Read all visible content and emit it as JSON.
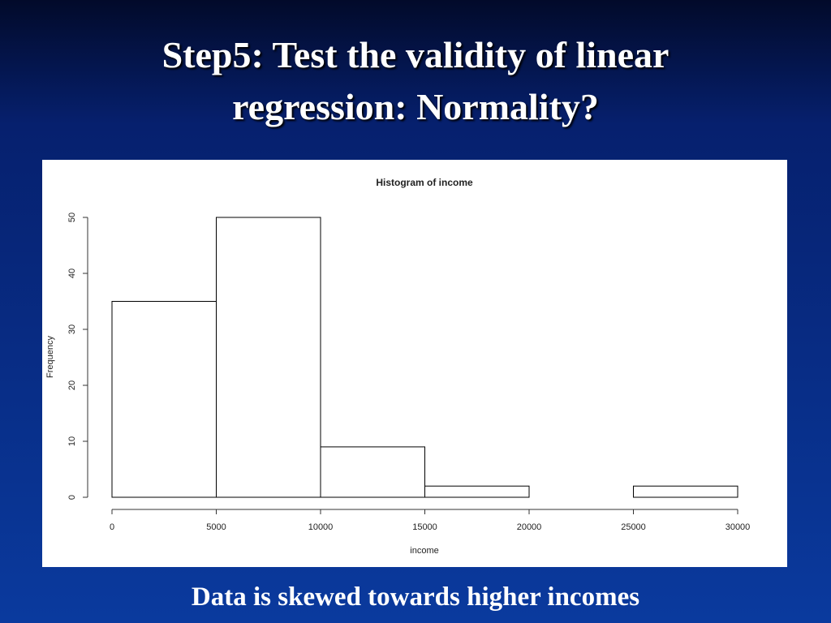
{
  "slide": {
    "title": "Step5: Test the validity of linear regression: Normality?",
    "caption": "Data is skewed towards higher incomes"
  },
  "chart_data": {
    "type": "histogram",
    "title": "Histogram of income",
    "xlabel": "income",
    "ylabel": "Frequency",
    "bins": [
      0,
      5000,
      10000,
      15000,
      20000,
      25000,
      30000
    ],
    "values": [
      35,
      50,
      9,
      2,
      0,
      2
    ],
    "color": "#ffffff",
    "edgecolor": "#000000",
    "xlim": [
      0,
      30000
    ],
    "ylim": [
      0,
      50
    ],
    "xticks": [
      0,
      5000,
      10000,
      15000,
      20000,
      25000,
      30000
    ],
    "yticks": [
      0,
      10,
      20,
      30,
      40,
      50
    ]
  }
}
